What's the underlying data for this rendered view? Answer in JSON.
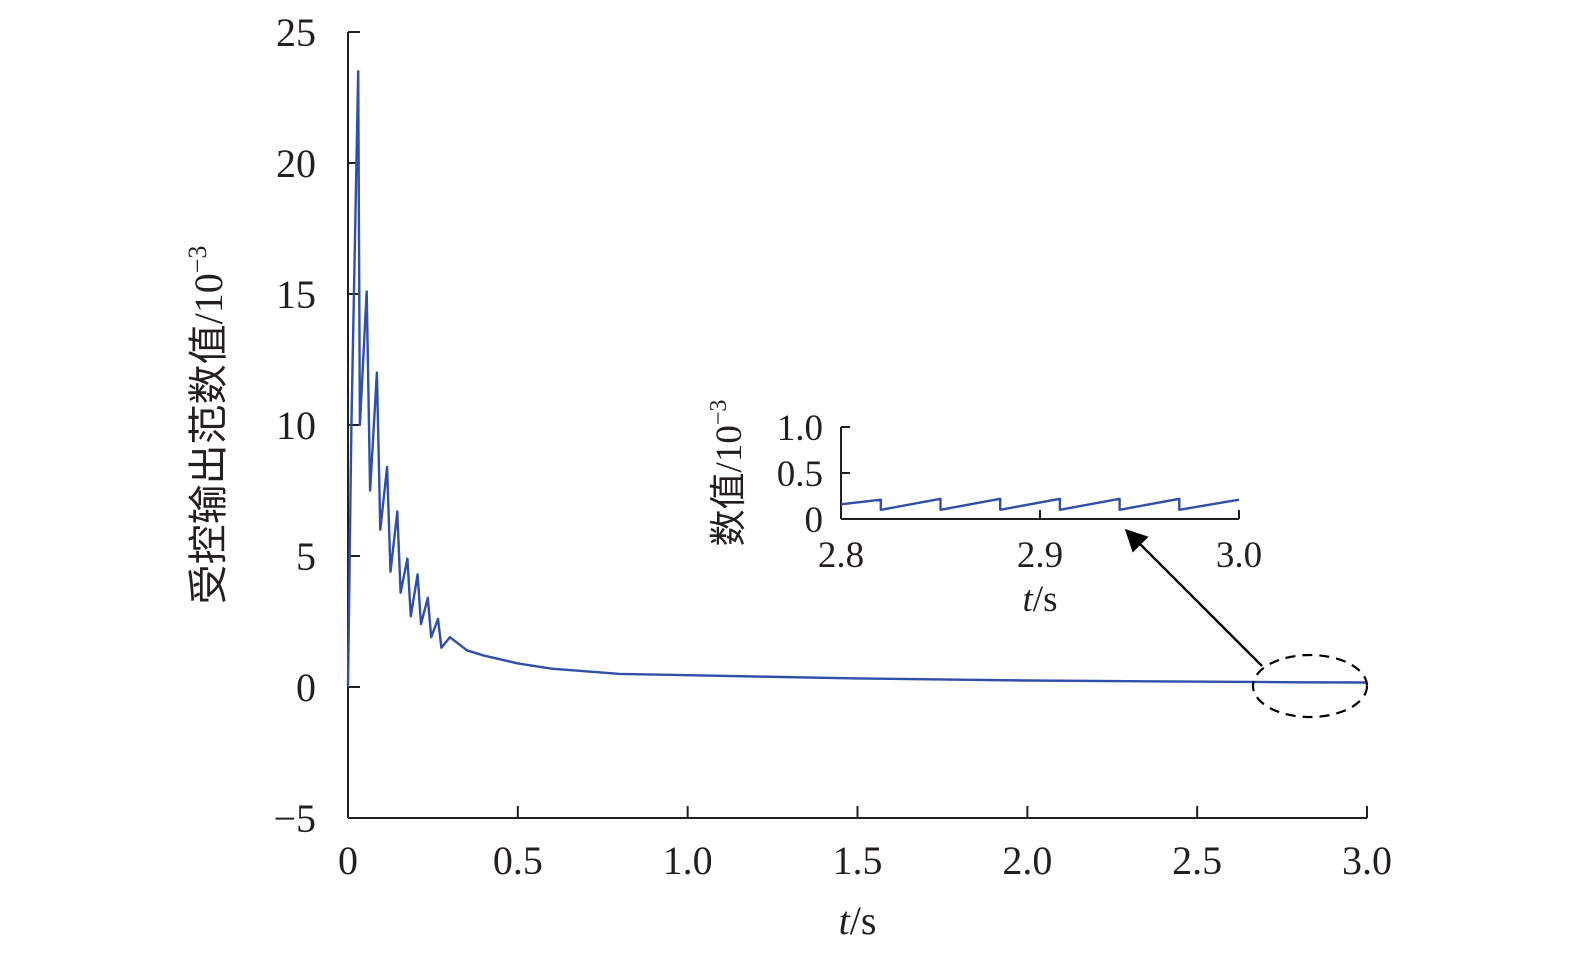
{
  "chart_data": [
    {
      "type": "line",
      "title": "",
      "xlabel_italic": "t",
      "xlabel_unit": "/s",
      "ylabel": "受控输出范数值/10",
      "ylabel_exp": "−3",
      "xlim": [
        0,
        3.0
      ],
      "ylim": [
        -5,
        25
      ],
      "x_ticks": [
        0,
        0.5,
        1.0,
        1.5,
        2.0,
        2.5,
        3.0
      ],
      "x_tick_labels": [
        "0",
        "0.5",
        "1.0",
        "1.5",
        "2.0",
        "2.5",
        "3.0"
      ],
      "y_ticks": [
        -5,
        0,
        5,
        10,
        15,
        20,
        25
      ],
      "y_tick_labels": [
        "−5",
        "0",
        "5",
        "10",
        "15",
        "20",
        "25"
      ],
      "grid": false,
      "series": [
        {
          "color": "#2f4fa8",
          "x": [
            0,
            0.01,
            0.03,
            0.035,
            0.055,
            0.065,
            0.085,
            0.095,
            0.115,
            0.125,
            0.145,
            0.155,
            0.175,
            0.185,
            0.205,
            0.215,
            0.235,
            0.245,
            0.265,
            0.275,
            0.3,
            0.35,
            0.4,
            0.5,
            0.6,
            0.7,
            0.8,
            1.0,
            1.2,
            1.5,
            1.8,
            2.0,
            2.3,
            2.6,
            2.8,
            3.0
          ],
          "y": [
            0,
            10,
            23.5,
            10,
            15.1,
            7.5,
            12.0,
            6.0,
            8.4,
            4.4,
            6.7,
            3.6,
            4.9,
            2.7,
            4.3,
            2.4,
            3.4,
            1.9,
            2.6,
            1.5,
            1.9,
            1.4,
            1.2,
            0.9,
            0.7,
            0.6,
            0.5,
            0.45,
            0.4,
            0.33,
            0.28,
            0.25,
            0.22,
            0.2,
            0.18,
            0.17
          ]
        }
      ]
    },
    {
      "type": "line",
      "title": "",
      "xlabel_italic": "t",
      "xlabel_unit": "/s",
      "ylabel": "数值/10",
      "ylabel_exp": "−3",
      "xlim": [
        2.8,
        3.0
      ],
      "ylim": [
        0,
        1.0
      ],
      "x_ticks": [
        2.8,
        2.9,
        3.0
      ],
      "x_tick_labels": [
        "2.8",
        "2.9",
        "3.0"
      ],
      "y_ticks": [
        0,
        0.5,
        1.0
      ],
      "y_tick_labels": [
        "0",
        "0.5",
        "1.0"
      ],
      "grid": false,
      "series": [
        {
          "color": "#2f4fa8",
          "x": [
            2.8,
            2.82,
            2.82,
            2.85,
            2.85,
            2.88,
            2.88,
            2.91,
            2.91,
            2.94,
            2.94,
            2.97,
            2.97,
            3.0
          ],
          "y": [
            0.16,
            0.21,
            0.1,
            0.22,
            0.1,
            0.22,
            0.1,
            0.22,
            0.1,
            0.22,
            0.1,
            0.22,
            0.1,
            0.21
          ]
        }
      ]
    }
  ]
}
